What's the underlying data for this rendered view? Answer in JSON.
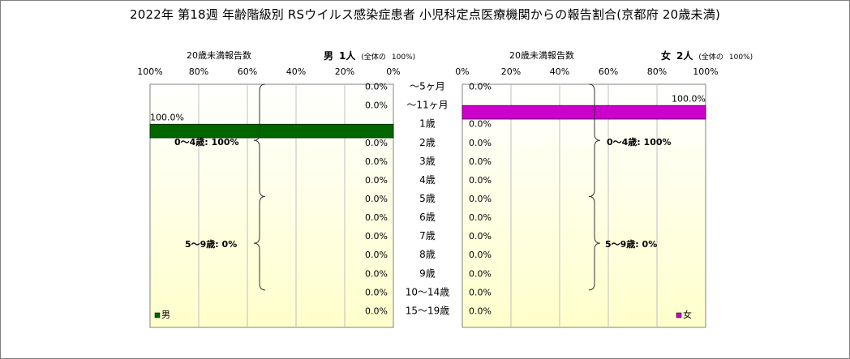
{
  "title": "2022年 第18週 年齢階級別 RSウイルス感染症患者 小児科定点医療機関からの報告割合(京都府 20歳未満)",
  "colors": {
    "male_bar": "#006600",
    "male_bar_stroke": "#003300",
    "female_bar": "#cc00cc",
    "female_bar_stroke": "#660066",
    "bg_gradient_top": "#ffffff",
    "bg_gradient_bottom": "#ffffcc",
    "grid": "#bfbfbf"
  },
  "male": {
    "header_label": "20歳未満報告数",
    "sex_label": "男",
    "count_label": "1人",
    "total_label": "(全体の",
    "total_pct": "100%)",
    "legend": "男"
  },
  "female": {
    "header_label": "20歳未満報告数",
    "sex_label": "女",
    "count_label": "2人",
    "total_label": "(全体の",
    "total_pct": "100%)",
    "legend": "女"
  },
  "groups": {
    "male": [
      {
        "label": "0～4歳: 100%"
      },
      {
        "label": "5～9歳: 0%"
      }
    ],
    "female": [
      {
        "label": "0～4歳: 100%"
      },
      {
        "label": "5～9歳: 0%"
      }
    ]
  },
  "chart_data": {
    "type": "bar",
    "orientation": "horizontal",
    "categories": [
      "～5ヶ月",
      "～11ヶ月",
      "1歳",
      "2歳",
      "3歳",
      "4歳",
      "5歳",
      "6歳",
      "7歳",
      "8歳",
      "9歳",
      "10～14歳",
      "15～19歳"
    ],
    "series": [
      {
        "name": "男",
        "values": [
          0,
          0,
          100,
          0,
          0,
          0,
          0,
          0,
          0,
          0,
          0,
          0,
          0
        ],
        "labels": [
          "0.0%",
          "0.0%",
          "100.0%",
          "0.0%",
          "0.0%",
          "0.0%",
          "0.0%",
          "0.0%",
          "0.0%",
          "0.0%",
          "0.0%",
          "0.0%",
          "0.0%"
        ]
      },
      {
        "name": "女",
        "values": [
          0,
          100,
          0,
          0,
          0,
          0,
          0,
          0,
          0,
          0,
          0,
          0,
          0
        ],
        "labels": [
          "0.0%",
          "100.0%",
          "0.0%",
          "0.0%",
          "0.0%",
          "0.0%",
          "0.0%",
          "0.0%",
          "0.0%",
          "0.0%",
          "0.0%",
          "0.0%",
          "0.0%"
        ]
      }
    ],
    "male_ticks": [
      "100%",
      "80%",
      "60%",
      "40%",
      "20%",
      "0%"
    ],
    "female_ticks": [
      "0%",
      "20%",
      "40%",
      "60%",
      "80%",
      "100%"
    ],
    "xlim": [
      0,
      100
    ],
    "grid": true,
    "legend_position": "bottom-right"
  }
}
